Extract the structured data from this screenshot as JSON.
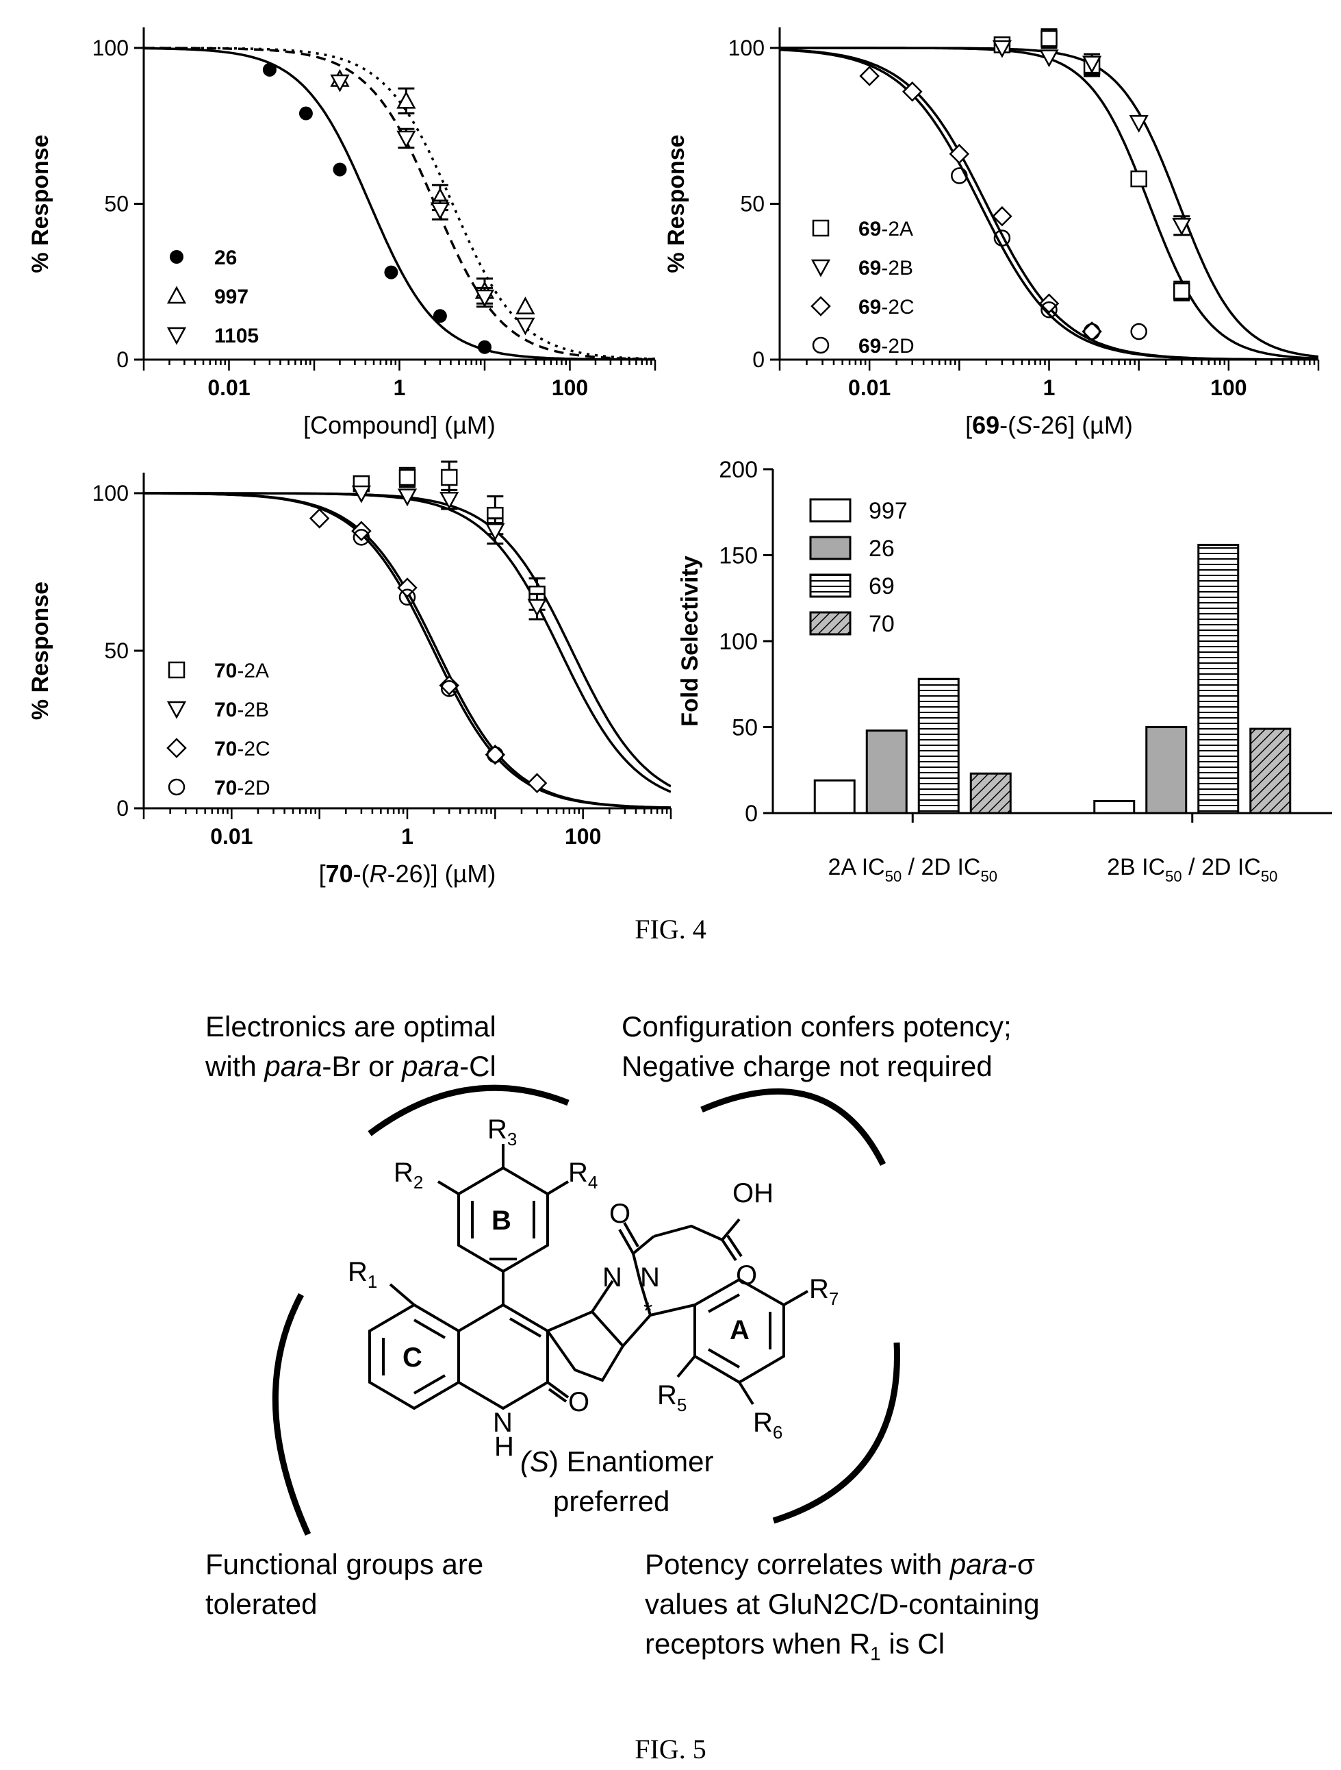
{
  "figure4": {
    "caption": "FIG. 4",
    "chart_data": [
      {
        "type": "line",
        "panel": "top-left",
        "xlabel": "[Compound] (µM)",
        "ylabel": "% Response",
        "xscale": "log",
        "xlim": [
          0.001,
          1000
        ],
        "ylim": [
          0,
          100
        ],
        "xticks": [
          "0.01",
          "1",
          "100"
        ],
        "yticks": [
          "0",
          "50",
          "100"
        ],
        "legend_position": "bottom-left",
        "series": [
          {
            "name": "26",
            "bold": true,
            "marker": "filled-circle",
            "line": "solid",
            "ic50": 0.45,
            "hill": 1.1,
            "points": [
              [
                0.03,
                93
              ],
              [
                0.08,
                79
              ],
              [
                0.2,
                61
              ],
              [
                0.8,
                28
              ],
              [
                3.0,
                14
              ],
              [
                10,
                4
              ]
            ]
          },
          {
            "name": "997",
            "bold": true,
            "marker": "triangle-up",
            "line": "dotted",
            "ic50": 4.2,
            "hill": 1.1,
            "points": [
              [
                0.2,
                90
              ],
              [
                1.2,
                83
              ],
              [
                3.0,
                52
              ],
              [
                10,
                22
              ],
              [
                30,
                17
              ]
            ],
            "errors": [
              0,
              4,
              4,
              4,
              0
            ]
          },
          {
            "name": "1105",
            "bold": true,
            "marker": "triangle-down",
            "line": "dashed",
            "ic50": 2.6,
            "hill": 1.1,
            "points": [
              [
                0.2,
                89
              ],
              [
                1.2,
                71
              ],
              [
                3.0,
                48
              ],
              [
                10,
                20
              ],
              [
                30,
                11
              ]
            ],
            "errors": [
              0,
              3,
              3,
              3,
              0
            ]
          }
        ]
      },
      {
        "type": "line",
        "panel": "top-right",
        "xlabel_prefix": "[",
        "xlabel_bold": "69",
        "xlabel_mid": "-(",
        "xlabel_italic": "S",
        "xlabel_suffix": "-26] (µM)",
        "ylabel": "% Response",
        "xscale": "log",
        "xlim": [
          0.001,
          1000
        ],
        "ylim": [
          0,
          100
        ],
        "xticks": [
          "0.01",
          "1",
          "100"
        ],
        "yticks": [
          "0",
          "50",
          "100"
        ],
        "legend_position": "bottom-left",
        "series": [
          {
            "name_bold": "69",
            "name_suffix": "-2A",
            "marker": "square",
            "ic50": 13,
            "hill": 1.3,
            "points": [
              [
                0.3,
                101
              ],
              [
                1.0,
                103
              ],
              [
                3.0,
                94
              ],
              [
                10,
                58
              ],
              [
                30,
                22
              ]
            ],
            "errors": [
              0,
              3,
              3,
              0,
              3
            ]
          },
          {
            "name_bold": "69",
            "name_suffix": "-2B",
            "marker": "triangle-down",
            "ic50": 28,
            "hill": 1.3,
            "points": [
              [
                0.3,
                100
              ],
              [
                1.0,
                97
              ],
              [
                3.0,
                95
              ],
              [
                10,
                76
              ],
              [
                30,
                43
              ]
            ],
            "errors": [
              0,
              0,
              3,
              0,
              3
            ]
          },
          {
            "name_bold": "69",
            "name_suffix": "-2C",
            "marker": "diamond",
            "ic50": 0.2,
            "hill": 1.0,
            "points": [
              [
                0.01,
                91
              ],
              [
                0.03,
                86
              ],
              [
                0.1,
                66
              ],
              [
                0.3,
                46
              ],
              [
                1.0,
                18
              ],
              [
                3.0,
                9
              ]
            ]
          },
          {
            "name_bold": "69",
            "name_suffix": "-2D",
            "marker": "circle",
            "ic50": 0.17,
            "hill": 1.0,
            "points": [
              [
                0.1,
                59
              ],
              [
                0.3,
                39
              ],
              [
                1.0,
                16
              ],
              [
                3.0,
                9
              ],
              [
                10,
                9
              ]
            ]
          }
        ]
      },
      {
        "type": "line",
        "panel": "bottom-left",
        "xlabel_prefix": "[",
        "xlabel_bold": "70",
        "xlabel_mid": "-(",
        "xlabel_italic": "R",
        "xlabel_suffix": "-26)] (µM)",
        "ylabel": "% Response",
        "xscale": "log",
        "xlim": [
          0.001,
          1000
        ],
        "ylim": [
          0,
          100
        ],
        "xticks": [
          "0.01",
          "1",
          "100"
        ],
        "yticks": [
          "0",
          "50",
          "100"
        ],
        "legend_position": "bottom-left",
        "series": [
          {
            "name_bold": "70",
            "name_suffix": "-2A",
            "marker": "square",
            "ic50": 55,
            "hill": 1.0,
            "points": [
              [
                0.3,
                103
              ],
              [
                1.0,
                105
              ],
              [
                3.0,
                105
              ],
              [
                10,
                93
              ],
              [
                30,
                68
              ]
            ],
            "errors": [
              0,
              3,
              5,
              6,
              5
            ]
          },
          {
            "name_bold": "70",
            "name_suffix": "-2B",
            "marker": "triangle-down",
            "ic50": 75,
            "hill": 1.0,
            "points": [
              [
                0.3,
                100
              ],
              [
                1.0,
                99
              ],
              [
                3.0,
                98
              ],
              [
                10,
                88
              ],
              [
                30,
                64
              ]
            ],
            "errors": [
              0,
              0,
              3,
              4,
              4
            ]
          },
          {
            "name_bold": "70",
            "name_suffix": "-2C",
            "marker": "diamond",
            "ic50": 2.2,
            "hill": 1.0,
            "points": [
              [
                0.1,
                92
              ],
              [
                0.3,
                88
              ],
              [
                1.0,
                70
              ],
              [
                3.0,
                39
              ],
              [
                10,
                17
              ],
              [
                30,
                8
              ]
            ]
          },
          {
            "name_bold": "70",
            "name_suffix": "-2D",
            "marker": "circle",
            "ic50": 2.0,
            "hill": 1.0,
            "points": [
              [
                0.3,
                86
              ],
              [
                1.0,
                67
              ],
              [
                3.0,
                38
              ],
              [
                10,
                17
              ]
            ]
          }
        ]
      },
      {
        "type": "bar",
        "panel": "bottom-right",
        "ylabel": "Fold Selectivity",
        "ylim": [
          0,
          200
        ],
        "yticks": [
          "0",
          "50",
          "100",
          "150",
          "200"
        ],
        "legend_position": "top-left",
        "groups": [
          {
            "label_main": "2A IC",
            "label_sub": "50",
            "label_mid": " / 2D IC",
            "label_sub2": "50"
          },
          {
            "label_main": "2B IC",
            "label_sub": "50",
            "label_mid": " / 2D IC",
            "label_sub2": "50"
          }
        ],
        "series": [
          {
            "name": "997",
            "fill": "white",
            "values": [
              19,
              7
            ]
          },
          {
            "name": "26",
            "fill": "gray",
            "values": [
              48,
              50
            ]
          },
          {
            "name": "69",
            "fill": "horizontal-lines",
            "values": [
              78,
              156
            ]
          },
          {
            "name": "70",
            "fill": "diagonal-lines",
            "values": [
              23,
              49
            ]
          }
        ]
      }
    ]
  },
  "figure5": {
    "caption": "FIG. 5",
    "notes": {
      "top_left_line1": "Electronics are optimal",
      "top_left_line2_a": "with ",
      "top_left_line2_b": "para",
      "top_left_line2_c": "-Br or ",
      "top_left_line2_d": "para",
      "top_left_line2_e": "-Cl",
      "top_right_line1": "Configuration confers potency;",
      "top_right_line2": "Negative charge not required",
      "center_line1_a": "(",
      "center_line1_b": "S",
      "center_line1_c": ") Enantiomer",
      "center_line2": "preferred",
      "bottom_left_line1": "Functional groups are",
      "bottom_left_line2": "tolerated",
      "bottom_right_line1_a": "Potency correlates with ",
      "bottom_right_line1_b": "para",
      "bottom_right_line1_c": "-σ",
      "bottom_right_line2": "values at GluN2C/D-containing",
      "bottom_right_line3_a": "receptors when R",
      "bottom_right_line3_sub": "1",
      "bottom_right_line3_b": " is Cl"
    },
    "structure_labels": {
      "R1": "R",
      "R1_sub": "1",
      "R2": "R",
      "R2_sub": "2",
      "R3": "R",
      "R3_sub": "3",
      "R4": "R",
      "R4_sub": "4",
      "R5": "R",
      "R5_sub": "5",
      "R6": "R",
      "R6_sub": "6",
      "R7": "R",
      "R7_sub": "7",
      "ring_A": "A",
      "ring_B": "B",
      "ring_C": "C",
      "OH": "OH",
      "O_ketone": "O",
      "O_acid": "O",
      "O_lactam": "O",
      "N1": "N",
      "N2": "N",
      "NH_N": "N",
      "NH_H": "H",
      "stereo": "*"
    }
  }
}
